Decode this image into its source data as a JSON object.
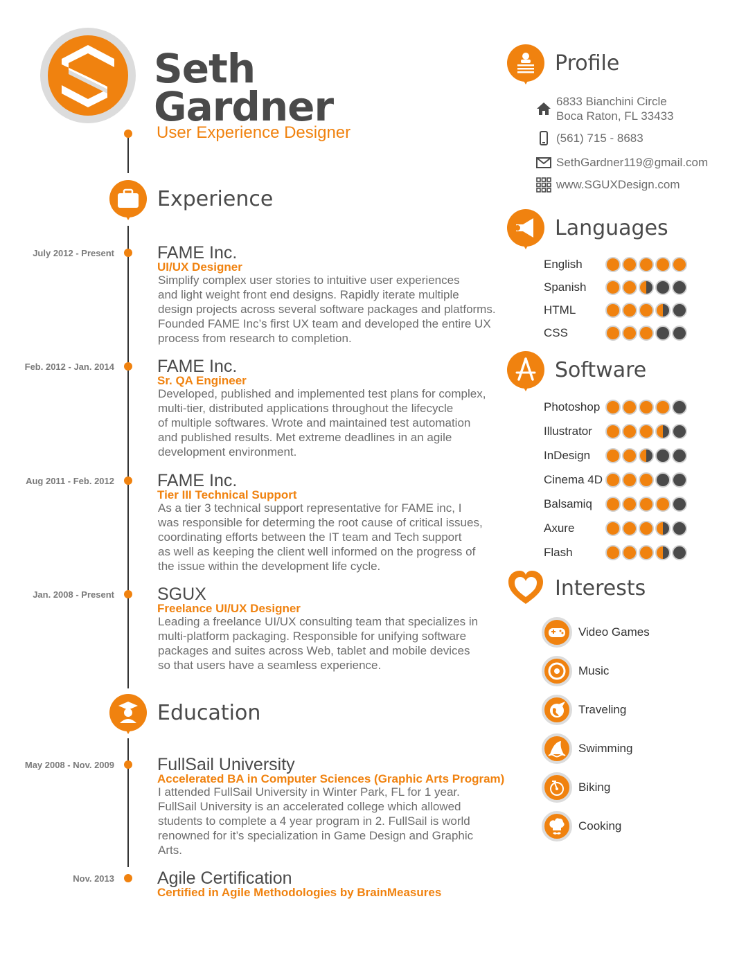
{
  "header": {
    "first_name": "Seth",
    "last_name": "Gardner",
    "title": "User Experience Designer"
  },
  "sections": {
    "experience": "Experience",
    "education": "Education",
    "profile": "Profile",
    "languages": "Languages",
    "software": "Software",
    "interests": "Interests"
  },
  "experience": [
    {
      "date": "July 2012 - Present",
      "company": "FAME Inc.",
      "role": "UI/UX Designer",
      "lines": [
        "Simplify complex user stories to intuitive user experiences",
        "and light weight front end designs. Rapidly iterate multiple",
        "design projects across several software packages and platforms.",
        "Founded FAME Inc’s first UX team and developed the entire UX",
        "process from research to completion."
      ]
    },
    {
      "date": "Feb. 2012 - Jan. 2014",
      "company": "FAME Inc.",
      "role": "Sr. QA Engineer",
      "lines": [
        "Developed, published and implemented test plans for complex,",
        "multi-tier, distributed applications throughout the lifecycle",
        "of multiple softwares. Wrote and maintained test automation",
        "and published results. Met extreme deadlines in an agile",
        "development environment."
      ]
    },
    {
      "date": "Aug 2011 - Feb. 2012",
      "company": "FAME Inc.",
      "role": "Tier III Technical Support",
      "lines": [
        "As a tier 3 technical support representative for FAME inc, I",
        "was responsible for determing the root cause of critical issues,",
        "coordinating efforts  between the IT team and Tech support",
        "as well as keeping the client well informed on the progress of",
        "the issue within the development life cycle."
      ]
    },
    {
      "date": "Jan. 2008 - Present",
      "company": "SGUX",
      "role": "Freelance UI/UX Designer",
      "lines": [
        "Leading a freelance UI/UX consulting team that specializes in",
        "multi-platform packaging. Responsible for unifying software",
        "packages and suites across Web, tablet and mobile devices",
        "so that users have a seamless experience."
      ]
    }
  ],
  "education": [
    {
      "date": "May 2008 - Nov. 2009",
      "school": "FullSail University",
      "degree": "Accelerated BA in Computer Sciences (Graphic Arts Program)",
      "lines": [
        "I attended FullSail University in Winter Park, FL for 1 year.",
        "FullSail University is an accelerated college which allowed",
        "students to complete a 4 year program in 2. FullSail is world",
        "renowned for it’s specialization in Game Design and Graphic",
        "Arts."
      ]
    },
    {
      "date": "Nov. 2013",
      "school": "Agile Certification",
      "degree": "Certified in Agile Methodologies by BrainMeasures",
      "lines": []
    }
  ],
  "profile": {
    "address_line1": "6833 Bianchini Circle",
    "address_line2": "Boca Raton, FL 33433",
    "phone": "(561) 715 - 8683",
    "email": "SethGardner119@gmail.com",
    "website": "www.SGUXDesign.com"
  },
  "languages": [
    {
      "name": "English",
      "rating": 5
    },
    {
      "name": "Spanish",
      "rating": 2.5
    },
    {
      "name": "HTML",
      "rating": 3.5
    },
    {
      "name": "CSS",
      "rating": 3
    }
  ],
  "software": [
    {
      "name": "Photoshop",
      "rating": 4
    },
    {
      "name": "Illustrator",
      "rating": 3.5
    },
    {
      "name": "InDesign",
      "rating": 2.5
    },
    {
      "name": "Cinema 4D",
      "rating": 3
    },
    {
      "name": "Balsamiq",
      "rating": 4
    },
    {
      "name": "Axure",
      "rating": 3.5
    },
    {
      "name": "Flash",
      "rating": 3.5
    }
  ],
  "interests": [
    {
      "label": "Video Games",
      "icon": "gamepad-icon"
    },
    {
      "label": "Music",
      "icon": "record-icon"
    },
    {
      "label": "Traveling",
      "icon": "globe-plane-icon"
    },
    {
      "label": "Swimming",
      "icon": "shark-fin-icon"
    },
    {
      "label": "Biking",
      "icon": "bicycle-icon"
    },
    {
      "label": "Cooking",
      "icon": "chef-hat-icon"
    }
  ],
  "colors": {
    "accent": "#f0820f",
    "text": "#4a4a4a",
    "muted": "#6d6d6d"
  }
}
